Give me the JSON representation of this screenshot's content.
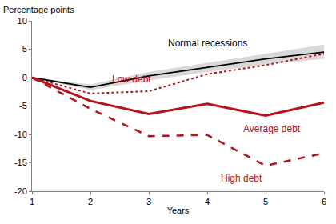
{
  "chart_data": {
    "type": "line",
    "y_label": "Percentage points",
    "x_label": "Years",
    "x": [
      1,
      2,
      3,
      4,
      5,
      6
    ],
    "xlim": [
      1,
      6
    ],
    "xticks": [
      1,
      2,
      3,
      4,
      5,
      6
    ],
    "ylim": [
      -20,
      10
    ],
    "yticks": [
      -20,
      -15,
      -10,
      -5,
      0,
      5,
      10
    ],
    "grid": false,
    "legend": false,
    "series": [
      {
        "name": "Normal recessions",
        "color": "#000000",
        "line_style": "solid",
        "values": [
          0,
          -1.7,
          0.3,
          1.8,
          3.3,
          4.5
        ],
        "lower": [
          0,
          -2.2,
          -0.5,
          1.0,
          2.3,
          3.3
        ],
        "upper": [
          0,
          -1.2,
          1.0,
          2.6,
          4.3,
          5.8
        ],
        "band_color": "#d9d9d9"
      },
      {
        "name": "Low debt",
        "color": "#b5121b",
        "line_style": "dot",
        "values": [
          0,
          -2.8,
          -2.4,
          0.6,
          2.2,
          4.2
        ]
      },
      {
        "name": "Average debt",
        "color": "#b5121b",
        "line_style": "solid",
        "values": [
          0,
          -4.1,
          -6.4,
          -4.6,
          -6.7,
          -4.4
        ]
      },
      {
        "name": "High debt",
        "color": "#b5121b",
        "line_style": "dash",
        "values": [
          0,
          -5.5,
          -10.3,
          -10.1,
          -15.5,
          -13.3
        ]
      }
    ]
  }
}
